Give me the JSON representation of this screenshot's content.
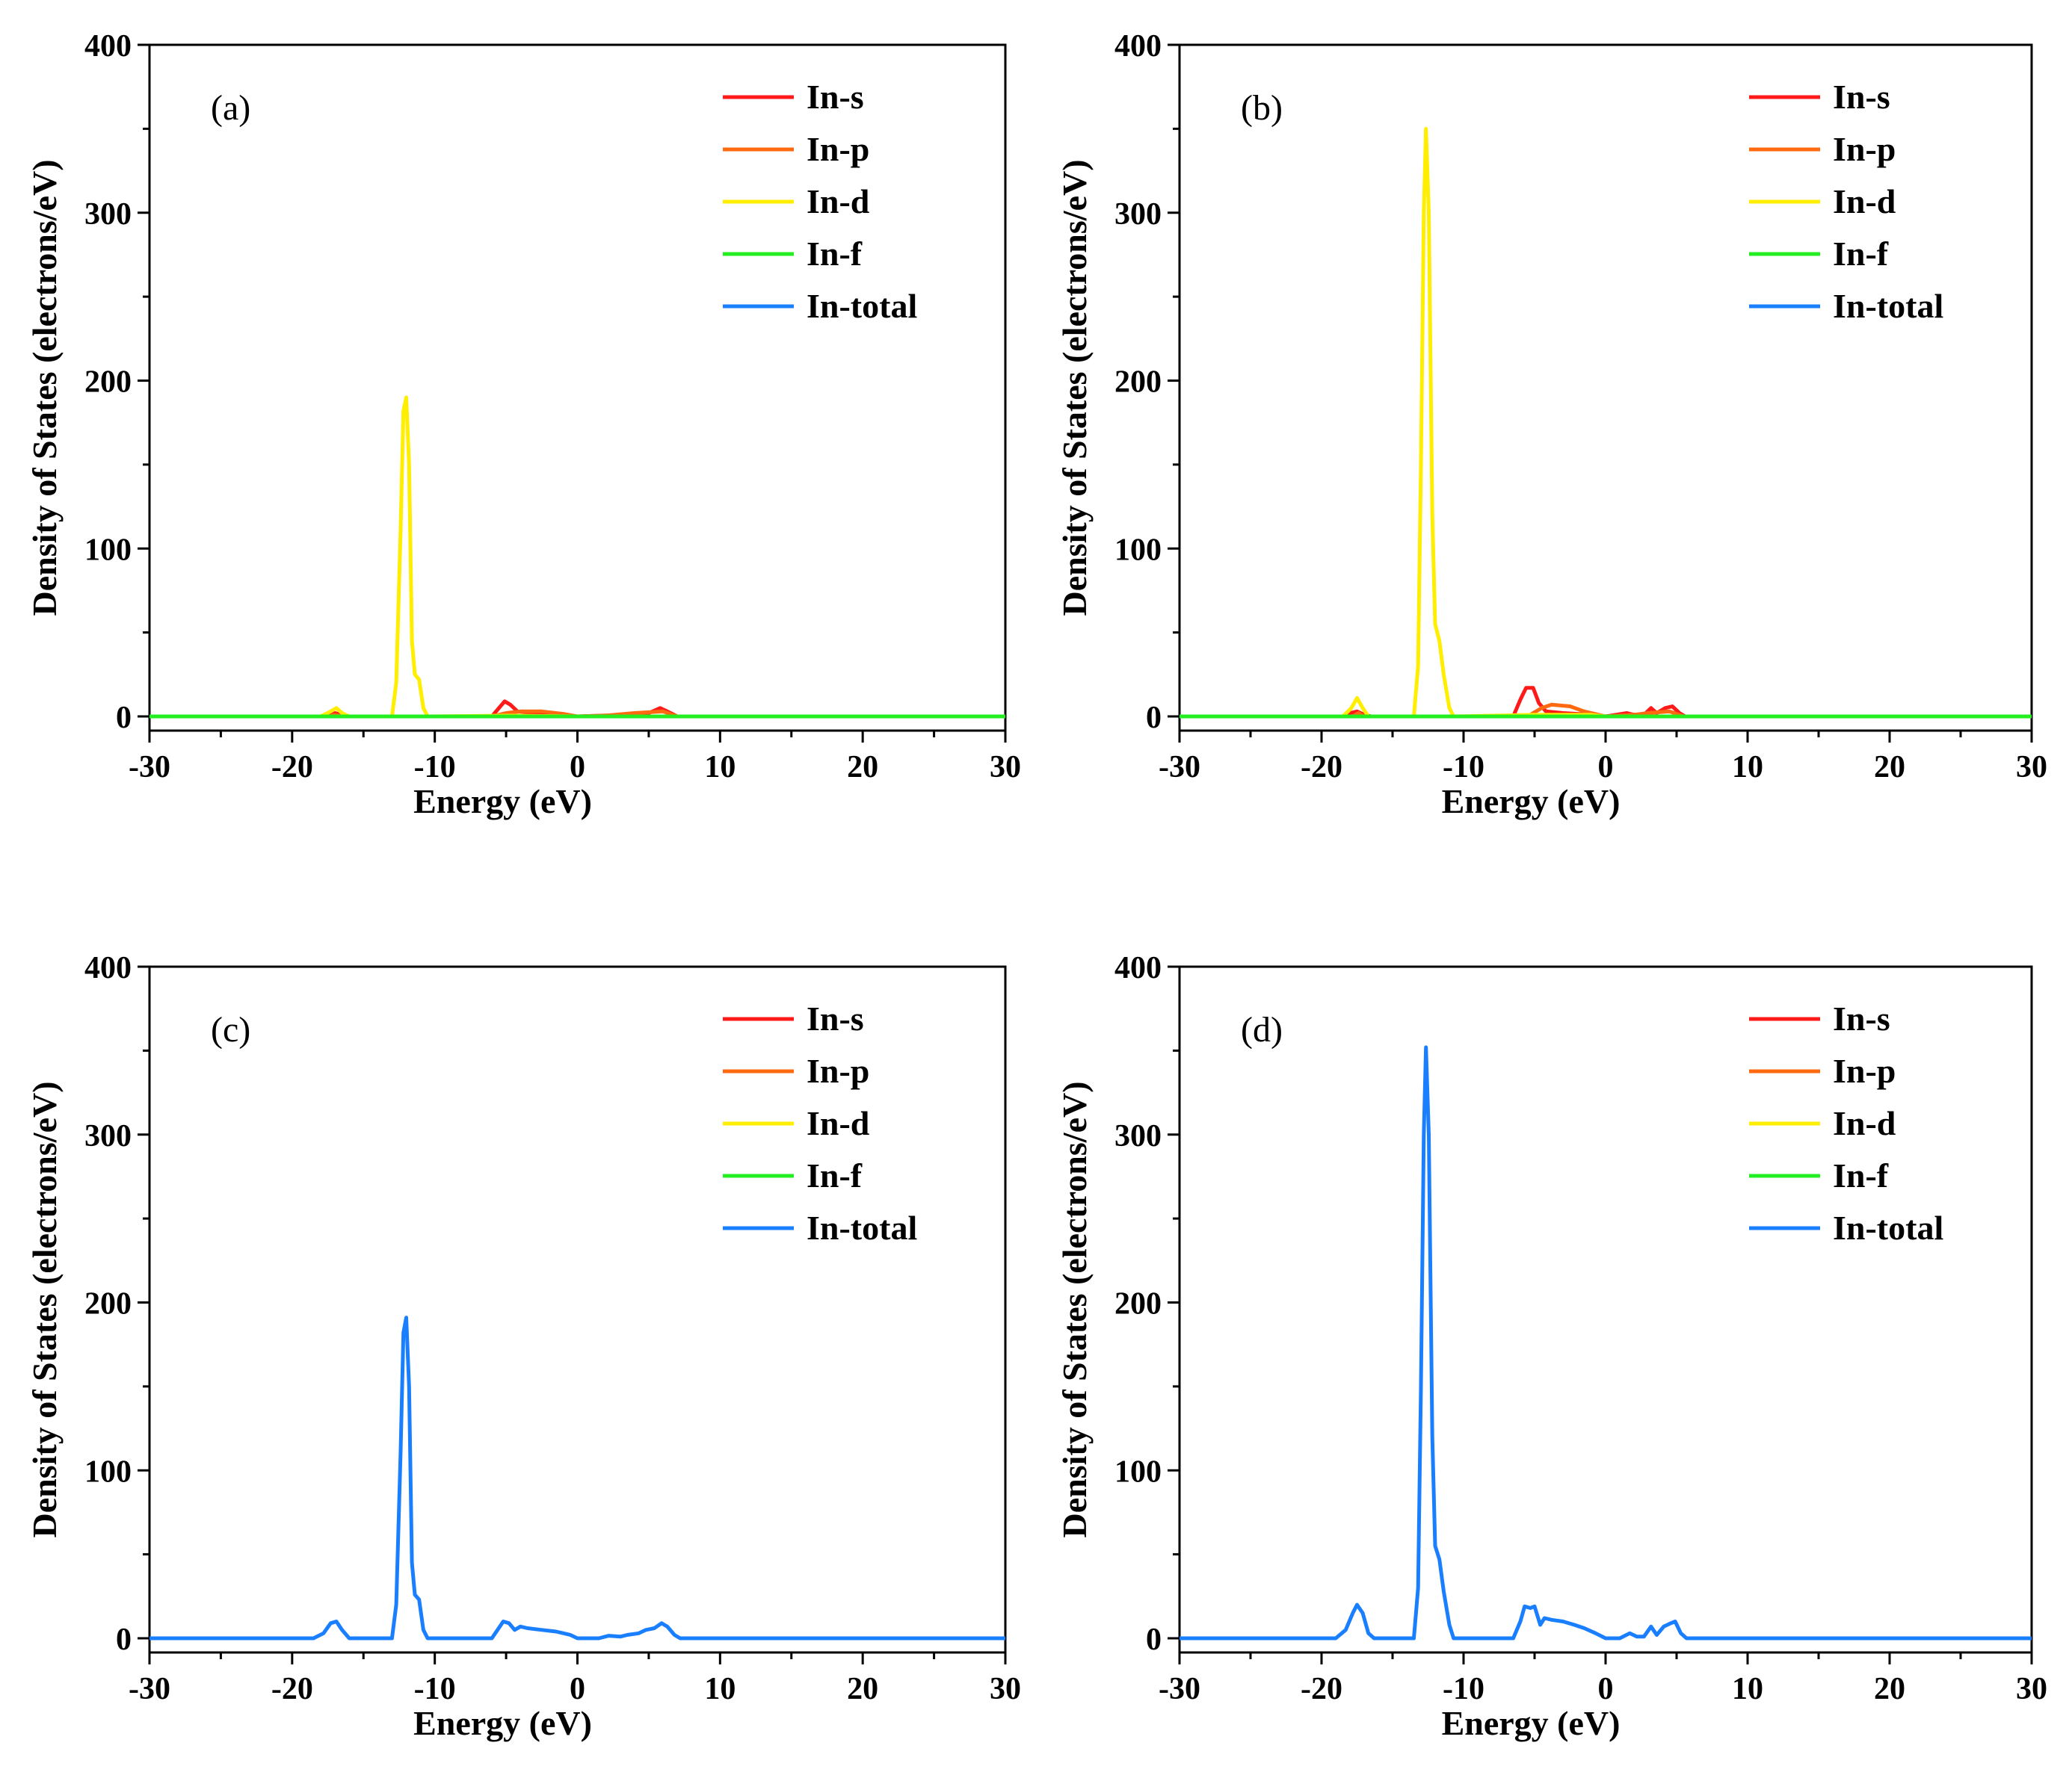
{
  "chart_data": [
    {
      "type": "line",
      "panel_label": "(a)",
      "xlabel": "Energy (eV)",
      "ylabel": "Density of States (electrons/eV)",
      "xlim": [
        -30,
        30
      ],
      "ylim": [
        0,
        400
      ],
      "xticks": [
        -30,
        -20,
        -10,
        0,
        10,
        20,
        30
      ],
      "yticks": [
        0,
        100,
        200,
        300,
        400
      ],
      "legend_position": "top-right",
      "series": [
        {
          "name": "In-s",
          "color": "#ff1a1a",
          "points": [
            [
              -30,
              0
            ],
            [
              -18,
              0
            ],
            [
              -17.5,
              1
            ],
            [
              -17,
              2
            ],
            [
              -16.5,
              1
            ],
            [
              -16,
              0
            ],
            [
              -6,
              0
            ],
            [
              -5.5,
              5
            ],
            [
              -5.1,
              9
            ],
            [
              -4.7,
              7
            ],
            [
              -4.2,
              3
            ],
            [
              -3,
              2
            ],
            [
              -1.5,
              1
            ],
            [
              0,
              0
            ],
            [
              2,
              0.6
            ],
            [
              3,
              0.4
            ],
            [
              4,
              1.5
            ],
            [
              5,
              2
            ],
            [
              5.8,
              5
            ],
            [
              6.3,
              3
            ],
            [
              7,
              0
            ],
            [
              30,
              0
            ]
          ]
        },
        {
          "name": "In-p",
          "color": "#ff6a10",
          "points": [
            [
              -30,
              0
            ],
            [
              -17.5,
              0
            ],
            [
              -17,
              1
            ],
            [
              -16.5,
              0
            ],
            [
              -6,
              0
            ],
            [
              -5,
              2
            ],
            [
              -4,
              3
            ],
            [
              -2.5,
              3
            ],
            [
              -1,
              1.5
            ],
            [
              0,
              0
            ],
            [
              2,
              0.5
            ],
            [
              4,
              2
            ],
            [
              5,
              2.5
            ],
            [
              6,
              3
            ],
            [
              7,
              0
            ],
            [
              30,
              0
            ]
          ]
        },
        {
          "name": "In-d",
          "color": "#ffee00",
          "points": [
            [
              -30,
              0
            ],
            [
              -18,
              0
            ],
            [
              -17.3,
              3
            ],
            [
              -16.9,
              5
            ],
            [
              -16.5,
              2
            ],
            [
              -16,
              0
            ],
            [
              -13,
              0
            ],
            [
              -12.7,
              20
            ],
            [
              -12.4,
              110
            ],
            [
              -12.2,
              182
            ],
            [
              -12.0,
              190
            ],
            [
              -11.8,
              150
            ],
            [
              -11.6,
              45
            ],
            [
              -11.4,
              25
            ],
            [
              -11.1,
              22
            ],
            [
              -10.8,
              5
            ],
            [
              -10.5,
              0
            ],
            [
              -5,
              0.5
            ],
            [
              0,
              0
            ],
            [
              30,
              0
            ]
          ]
        },
        {
          "name": "In-f",
          "color": "#22ee22",
          "points": [
            [
              -30,
              0
            ],
            [
              30,
              0
            ]
          ]
        },
        {
          "name": "In-total",
          "color": "#1a7fff",
          "points": []
        }
      ]
    },
    {
      "type": "line",
      "panel_label": "(b)",
      "xlabel": "Energy (eV)",
      "ylabel": "Density of States (electrons/eV)",
      "xlim": [
        -30,
        30
      ],
      "ylim": [
        0,
        400
      ],
      "xticks": [
        -30,
        -20,
        -10,
        0,
        10,
        20,
        30
      ],
      "yticks": [
        0,
        100,
        200,
        300,
        400
      ],
      "legend_position": "top-right",
      "series": [
        {
          "name": "In-s",
          "color": "#ff1a1a",
          "points": [
            [
              -30,
              0
            ],
            [
              -18.5,
              0
            ],
            [
              -18,
              2
            ],
            [
              -17.5,
              3
            ],
            [
              -17,
              1
            ],
            [
              -16.5,
              0
            ],
            [
              -6.5,
              0
            ],
            [
              -6,
              10
            ],
            [
              -5.6,
              17
            ],
            [
              -5.1,
              17
            ],
            [
              -4.7,
              8
            ],
            [
              -4.2,
              3
            ],
            [
              -3,
              2
            ],
            [
              -1,
              1
            ],
            [
              0,
              0
            ],
            [
              1.5,
              2
            ],
            [
              2,
              1
            ],
            [
              2.7,
              1
            ],
            [
              3.2,
              5
            ],
            [
              3.6,
              2
            ],
            [
              4.2,
              5
            ],
            [
              4.7,
              6
            ],
            [
              5.2,
              2
            ],
            [
              5.6,
              0
            ],
            [
              30,
              0
            ]
          ]
        },
        {
          "name": "In-p",
          "color": "#ff6a10",
          "points": [
            [
              -30,
              0
            ],
            [
              -17.8,
              0
            ],
            [
              -17.4,
              2
            ],
            [
              -17,
              0
            ],
            [
              -5.5,
              0
            ],
            [
              -4.5,
              5
            ],
            [
              -3.8,
              7
            ],
            [
              -2.5,
              6
            ],
            [
              -1.5,
              3
            ],
            [
              -0.5,
              1
            ],
            [
              0,
              0
            ],
            [
              2,
              1
            ],
            [
              3,
              2
            ],
            [
              4.5,
              3
            ],
            [
              5.5,
              0
            ],
            [
              30,
              0
            ]
          ]
        },
        {
          "name": "In-d",
          "color": "#ffee00",
          "points": [
            [
              -30,
              0
            ],
            [
              -18.5,
              0
            ],
            [
              -17.9,
              5
            ],
            [
              -17.5,
              11
            ],
            [
              -17.1,
              5
            ],
            [
              -16.7,
              0
            ],
            [
              -13.5,
              0
            ],
            [
              -13.2,
              30
            ],
            [
              -13,
              150
            ],
            [
              -12.8,
              300
            ],
            [
              -12.65,
              350
            ],
            [
              -12.45,
              300
            ],
            [
              -12.2,
              120
            ],
            [
              -12,
              55
            ],
            [
              -11.7,
              45
            ],
            [
              -11.4,
              25
            ],
            [
              -11,
              5
            ],
            [
              -10.7,
              0
            ],
            [
              -5,
              1
            ],
            [
              -1,
              1
            ],
            [
              0,
              0
            ],
            [
              30,
              0
            ]
          ]
        },
        {
          "name": "In-f",
          "color": "#22ee22",
          "points": [
            [
              -30,
              0
            ],
            [
              30,
              0
            ]
          ]
        },
        {
          "name": "In-total",
          "color": "#1a7fff",
          "points": []
        }
      ]
    },
    {
      "type": "line",
      "panel_label": "(c)",
      "xlabel": "Energy (eV)",
      "ylabel": "Density of States (electrons/eV)",
      "xlim": [
        -30,
        30
      ],
      "ylim": [
        0,
        400
      ],
      "xticks": [
        -30,
        -20,
        -10,
        0,
        10,
        20,
        30
      ],
      "yticks": [
        0,
        100,
        200,
        300,
        400
      ],
      "legend_position": "top-right",
      "series": [
        {
          "name": "In-s",
          "color": "#ff1a1a",
          "points": []
        },
        {
          "name": "In-p",
          "color": "#ff6a10",
          "points": []
        },
        {
          "name": "In-d",
          "color": "#ffee00",
          "points": []
        },
        {
          "name": "In-f",
          "color": "#22ee22",
          "points": []
        },
        {
          "name": "In-total",
          "color": "#1a7fff",
          "points": [
            [
              -30,
              0
            ],
            [
              -18.5,
              0
            ],
            [
              -17.8,
              3
            ],
            [
              -17.3,
              9
            ],
            [
              -16.9,
              10
            ],
            [
              -16.5,
              5
            ],
            [
              -16,
              0
            ],
            [
              -13,
              0
            ],
            [
              -12.7,
              20
            ],
            [
              -12.4,
              110
            ],
            [
              -12.2,
              182
            ],
            [
              -12.0,
              191
            ],
            [
              -11.8,
              150
            ],
            [
              -11.6,
              45
            ],
            [
              -11.4,
              26
            ],
            [
              -11.1,
              23
            ],
            [
              -10.8,
              5
            ],
            [
              -10.5,
              0
            ],
            [
              -6,
              0
            ],
            [
              -5.6,
              5
            ],
            [
              -5.2,
              10
            ],
            [
              -4.8,
              9
            ],
            [
              -4.4,
              5
            ],
            [
              -4,
              7
            ],
            [
              -3.5,
              6
            ],
            [
              -2.5,
              5
            ],
            [
              -1.5,
              4
            ],
            [
              -0.5,
              2
            ],
            [
              0,
              0
            ],
            [
              1.5,
              0
            ],
            [
              2.2,
              1.5
            ],
            [
              3,
              1
            ],
            [
              3.5,
              2
            ],
            [
              4.3,
              3
            ],
            [
              4.8,
              5
            ],
            [
              5.4,
              6
            ],
            [
              5.9,
              9
            ],
            [
              6.3,
              7
            ],
            [
              6.8,
              2
            ],
            [
              7.2,
              0
            ],
            [
              30,
              0
            ]
          ]
        }
      ]
    },
    {
      "type": "line",
      "panel_label": "(d)",
      "xlabel": "Energy (eV)",
      "ylabel": "Density of States (electrons/eV)",
      "xlim": [
        -30,
        30
      ],
      "ylim": [
        0,
        400
      ],
      "xticks": [
        -30,
        -20,
        -10,
        0,
        10,
        20,
        30
      ],
      "yticks": [
        0,
        100,
        200,
        300,
        400
      ],
      "legend_position": "top-right",
      "series": [
        {
          "name": "In-s",
          "color": "#ff1a1a",
          "points": []
        },
        {
          "name": "In-p",
          "color": "#ff6a10",
          "points": []
        },
        {
          "name": "In-d",
          "color": "#ffee00",
          "points": []
        },
        {
          "name": "In-f",
          "color": "#22ee22",
          "points": []
        },
        {
          "name": "In-total",
          "color": "#1a7fff",
          "points": [
            [
              -30,
              0
            ],
            [
              -19,
              0
            ],
            [
              -18.3,
              5
            ],
            [
              -17.8,
              15
            ],
            [
              -17.5,
              20
            ],
            [
              -17.1,
              15
            ],
            [
              -16.7,
              3
            ],
            [
              -16.3,
              0
            ],
            [
              -13.5,
              0
            ],
            [
              -13.2,
              30
            ],
            [
              -13,
              150
            ],
            [
              -12.8,
              300
            ],
            [
              -12.65,
              352
            ],
            [
              -12.45,
              300
            ],
            [
              -12.2,
              120
            ],
            [
              -12,
              55
            ],
            [
              -11.7,
              47
            ],
            [
              -11.4,
              28
            ],
            [
              -11,
              8
            ],
            [
              -10.7,
              0
            ],
            [
              -6.5,
              0
            ],
            [
              -6,
              10
            ],
            [
              -5.7,
              19
            ],
            [
              -5.3,
              18
            ],
            [
              -5,
              19
            ],
            [
              -4.6,
              8
            ],
            [
              -4.3,
              12
            ],
            [
              -3.8,
              11
            ],
            [
              -3,
              10
            ],
            [
              -2.2,
              8
            ],
            [
              -1.5,
              6
            ],
            [
              -0.7,
              3
            ],
            [
              0,
              0
            ],
            [
              1,
              0
            ],
            [
              1.7,
              3
            ],
            [
              2.2,
              1
            ],
            [
              2.7,
              1
            ],
            [
              3.2,
              7
            ],
            [
              3.6,
              2
            ],
            [
              4.1,
              7
            ],
            [
              4.6,
              9
            ],
            [
              4.9,
              10
            ],
            [
              5.3,
              3
            ],
            [
              5.7,
              0
            ],
            [
              30,
              0
            ]
          ]
        }
      ]
    }
  ]
}
